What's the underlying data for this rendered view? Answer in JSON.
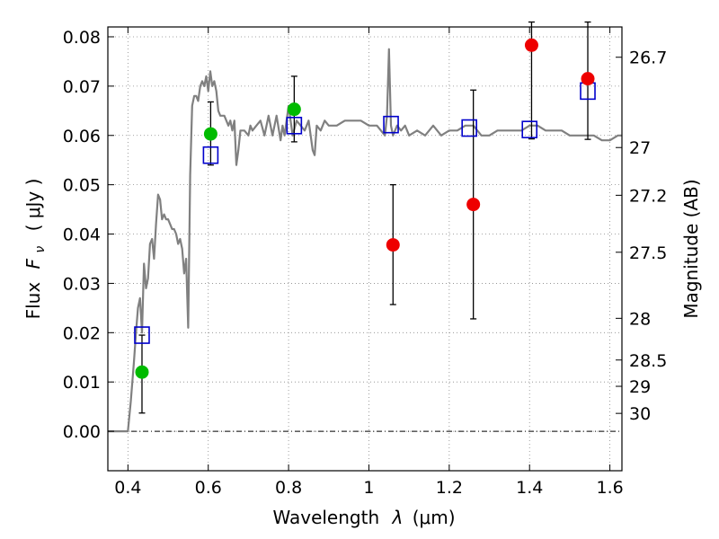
{
  "chart_data": {
    "type": "scatter",
    "xlabel_text": "Wavelength",
    "xlabel_symbol": "λ",
    "xlabel_unit": "(μm)",
    "ylabel_text": "Flux",
    "ylabel_symbol": "F",
    "ylabel_subscript": "ν",
    "ylabel_unit": "( μJy )",
    "y2label": "Magnitude (AB)",
    "xlim": [
      0.35,
      1.63
    ],
    "ylim": [
      -0.008,
      0.082
    ],
    "grid": true,
    "x_ticks": [
      {
        "v": 0.4,
        "label": "0.4"
      },
      {
        "v": 0.6,
        "label": "0.6"
      },
      {
        "v": 0.8,
        "label": "0.8"
      },
      {
        "v": 1.0,
        "label": "1"
      },
      {
        "v": 1.2,
        "label": "1.2"
      },
      {
        "v": 1.4,
        "label": "1.4"
      },
      {
        "v": 1.6,
        "label": "1.6"
      }
    ],
    "y_ticks": [
      {
        "v": 0.0,
        "label": "0.00"
      },
      {
        "v": 0.01,
        "label": "0.01"
      },
      {
        "v": 0.02,
        "label": "0.02"
      },
      {
        "v": 0.03,
        "label": "0.03"
      },
      {
        "v": 0.04,
        "label": "0.04"
      },
      {
        "v": 0.05,
        "label": "0.05"
      },
      {
        "v": 0.06,
        "label": "0.06"
      },
      {
        "v": 0.07,
        "label": "0.07"
      },
      {
        "v": 0.08,
        "label": "0.08"
      }
    ],
    "y2_ticks": [
      {
        "mag": 26.7,
        "label": "26.7"
      },
      {
        "mag": 27,
        "label": "27"
      },
      {
        "mag": 27.2,
        "label": "27.2"
      },
      {
        "mag": 27.5,
        "label": "27.5"
      },
      {
        "mag": 28,
        "label": "28"
      },
      {
        "mag": 28.5,
        "label": "28.5"
      },
      {
        "mag": 29,
        "label": "29"
      },
      {
        "mag": 30,
        "label": "30"
      }
    ],
    "model_spectrum": {
      "color": "#808080",
      "x": [
        0.35,
        0.4,
        0.407,
        0.415,
        0.42,
        0.425,
        0.43,
        0.435,
        0.44,
        0.445,
        0.45,
        0.455,
        0.46,
        0.465,
        0.47,
        0.475,
        0.48,
        0.485,
        0.49,
        0.495,
        0.5,
        0.505,
        0.51,
        0.515,
        0.52,
        0.525,
        0.53,
        0.535,
        0.54,
        0.545,
        0.55,
        0.555,
        0.56,
        0.565,
        0.57,
        0.575,
        0.58,
        0.585,
        0.59,
        0.595,
        0.6,
        0.605,
        0.61,
        0.615,
        0.62,
        0.625,
        0.63,
        0.64,
        0.65,
        0.655,
        0.66,
        0.665,
        0.67,
        0.675,
        0.68,
        0.69,
        0.7,
        0.705,
        0.71,
        0.72,
        0.73,
        0.74,
        0.75,
        0.76,
        0.77,
        0.78,
        0.785,
        0.79,
        0.8,
        0.81,
        0.82,
        0.83,
        0.84,
        0.85,
        0.86,
        0.865,
        0.87,
        0.88,
        0.89,
        0.9,
        0.92,
        0.94,
        0.96,
        0.98,
        1.0,
        1.02,
        1.04,
        1.045,
        1.05,
        1.055,
        1.06,
        1.07,
        1.08,
        1.09,
        1.1,
        1.12,
        1.14,
        1.16,
        1.18,
        1.2,
        1.22,
        1.24,
        1.26,
        1.28,
        1.3,
        1.32,
        1.34,
        1.36,
        1.38,
        1.4,
        1.42,
        1.44,
        1.46,
        1.48,
        1.5,
        1.52,
        1.54,
        1.56,
        1.58,
        1.6,
        1.62,
        1.63
      ],
      "y": [
        0.0,
        0.0,
        0.006,
        0.014,
        0.02,
        0.025,
        0.027,
        0.02,
        0.034,
        0.029,
        0.031,
        0.038,
        0.039,
        0.035,
        0.042,
        0.048,
        0.047,
        0.043,
        0.044,
        0.043,
        0.043,
        0.042,
        0.041,
        0.041,
        0.04,
        0.038,
        0.039,
        0.037,
        0.032,
        0.035,
        0.021,
        0.052,
        0.066,
        0.068,
        0.068,
        0.067,
        0.07,
        0.071,
        0.07,
        0.072,
        0.069,
        0.073,
        0.07,
        0.071,
        0.069,
        0.065,
        0.064,
        0.064,
        0.062,
        0.063,
        0.061,
        0.063,
        0.054,
        0.057,
        0.061,
        0.061,
        0.06,
        0.062,
        0.061,
        0.062,
        0.063,
        0.06,
        0.064,
        0.06,
        0.064,
        0.059,
        0.062,
        0.06,
        0.066,
        0.06,
        0.063,
        0.062,
        0.061,
        0.063,
        0.057,
        0.056,
        0.062,
        0.061,
        0.063,
        0.062,
        0.062,
        0.063,
        0.063,
        0.063,
        0.062,
        0.062,
        0.06,
        0.064,
        0.0775,
        0.062,
        0.06,
        0.062,
        0.061,
        0.062,
        0.06,
        0.061,
        0.06,
        0.062,
        0.06,
        0.061,
        0.061,
        0.062,
        0.062,
        0.06,
        0.06,
        0.061,
        0.061,
        0.061,
        0.061,
        0.062,
        0.062,
        0.061,
        0.061,
        0.061,
        0.06,
        0.06,
        0.06,
        0.06,
        0.059,
        0.059,
        0.06,
        0.06
      ]
    },
    "model_photometry": {
      "marker": "open-square",
      "color": "#0000cc",
      "points": [
        {
          "x": 0.435,
          "y": 0.0195
        },
        {
          "x": 0.606,
          "y": 0.056
        },
        {
          "x": 0.814,
          "y": 0.062
        },
        {
          "x": 1.055,
          "y": 0.0622
        },
        {
          "x": 1.25,
          "y": 0.0615
        },
        {
          "x": 1.4,
          "y": 0.0612
        },
        {
          "x": 1.545,
          "y": 0.069
        }
      ]
    },
    "observed_green": {
      "marker": "filled-circle",
      "color": "#00bb00",
      "points": [
        {
          "x": 0.435,
          "y": 0.012,
          "err_lo": 0.0037,
          "err_hi": 0.0195
        },
        {
          "x": 0.606,
          "y": 0.0603,
          "err_lo": 0.054,
          "err_hi": 0.0668
        },
        {
          "x": 0.814,
          "y": 0.0653,
          "err_lo": 0.0587,
          "err_hi": 0.072
        }
      ]
    },
    "observed_red": {
      "marker": "filled-circle",
      "color": "#ee0000",
      "points": [
        {
          "x": 1.06,
          "y": 0.0378,
          "err_lo": 0.0257,
          "err_hi": 0.05
        },
        {
          "x": 1.26,
          "y": 0.046,
          "err_lo": 0.0228,
          "err_hi": 0.0692
        },
        {
          "x": 1.405,
          "y": 0.0783,
          "err_lo": 0.0593,
          "err_hi": 0.083
        },
        {
          "x": 1.545,
          "y": 0.0715,
          "err_lo": 0.0592,
          "err_hi": 0.083
        }
      ]
    }
  }
}
